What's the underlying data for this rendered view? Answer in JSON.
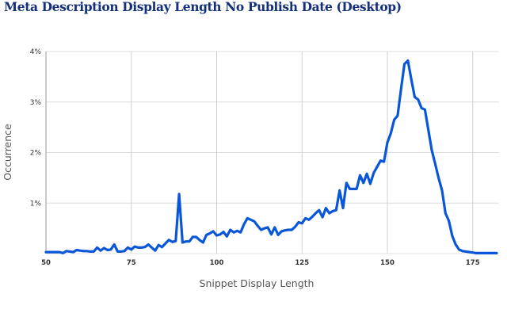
{
  "chart_data": {
    "type": "line",
    "title": "Meta Description Display Length No Publish Date (Desktop)",
    "xlabel": "Snippet Display Length",
    "ylabel": "Occurrence",
    "xlim": [
      50,
      185
    ],
    "ylim": [
      0,
      4
    ],
    "x_ticks": [
      50,
      75,
      100,
      125,
      150,
      175
    ],
    "y_ticks": [
      {
        "value": 1,
        "label": "1%"
      },
      {
        "value": 2,
        "label": "2%"
      },
      {
        "value": 3,
        "label": "3%"
      },
      {
        "value": 4,
        "label": "4%"
      }
    ],
    "grid": true,
    "line_color": "#0a56d8",
    "series": [
      {
        "name": "Occurrence (%)",
        "x": [
          50,
          51,
          52,
          53,
          54,
          55,
          56,
          57,
          58,
          59,
          60,
          61,
          62,
          63,
          64,
          65,
          66,
          67,
          68,
          69,
          70,
          71,
          72,
          73,
          74,
          75,
          76,
          77,
          78,
          79,
          80,
          81,
          82,
          83,
          84,
          85,
          86,
          87,
          88,
          89,
          90,
          91,
          92,
          93,
          94,
          95,
          96,
          97,
          98,
          99,
          100,
          101,
          102,
          103,
          104,
          105,
          106,
          107,
          108,
          109,
          110,
          111,
          112,
          113,
          114,
          115,
          116,
          117,
          118,
          119,
          120,
          121,
          122,
          123,
          124,
          125,
          126,
          127,
          128,
          129,
          130,
          131,
          132,
          133,
          134,
          135,
          136,
          137,
          138,
          139,
          140,
          141,
          142,
          143,
          144,
          145,
          146,
          147,
          148,
          149,
          150,
          151,
          152,
          153,
          154,
          155,
          156,
          157,
          158,
          159,
          160,
          161,
          162,
          163,
          164,
          165,
          166,
          167,
          168,
          169,
          170,
          171,
          172,
          173,
          174,
          175,
          176,
          177,
          178,
          179,
          180,
          181,
          182
        ],
        "values": [
          0.03,
          0.03,
          0.03,
          0.03,
          0.03,
          0.01,
          0.05,
          0.04,
          0.03,
          0.07,
          0.06,
          0.05,
          0.05,
          0.04,
          0.04,
          0.12,
          0.06,
          0.11,
          0.07,
          0.08,
          0.18,
          0.04,
          0.04,
          0.05,
          0.12,
          0.08,
          0.14,
          0.12,
          0.12,
          0.13,
          0.18,
          0.12,
          0.06,
          0.17,
          0.13,
          0.2,
          0.27,
          0.23,
          0.25,
          1.18,
          0.22,
          0.24,
          0.24,
          0.33,
          0.33,
          0.27,
          0.22,
          0.37,
          0.4,
          0.44,
          0.36,
          0.38,
          0.43,
          0.34,
          0.47,
          0.42,
          0.45,
          0.42,
          0.58,
          0.7,
          0.67,
          0.64,
          0.55,
          0.47,
          0.5,
          0.52,
          0.38,
          0.52,
          0.37,
          0.44,
          0.46,
          0.47,
          0.47,
          0.53,
          0.62,
          0.6,
          0.7,
          0.67,
          0.73,
          0.8,
          0.86,
          0.72,
          0.9,
          0.8,
          0.84,
          0.86,
          1.25,
          0.9,
          1.4,
          1.28,
          1.28,
          1.28,
          1.55,
          1.4,
          1.58,
          1.38,
          1.6,
          1.72,
          1.84,
          1.82,
          2.2,
          2.38,
          2.65,
          2.73,
          3.25,
          3.75,
          3.82,
          3.45,
          3.1,
          3.05,
          2.88,
          2.85,
          2.45,
          2.05,
          1.78,
          1.5,
          1.25,
          0.8,
          0.65,
          0.35,
          0.18,
          0.08,
          0.05,
          0.04,
          0.03,
          0.02,
          0.01,
          0.01,
          0.01,
          0.01,
          0.01,
          0.01,
          0.01
        ]
      }
    ]
  }
}
